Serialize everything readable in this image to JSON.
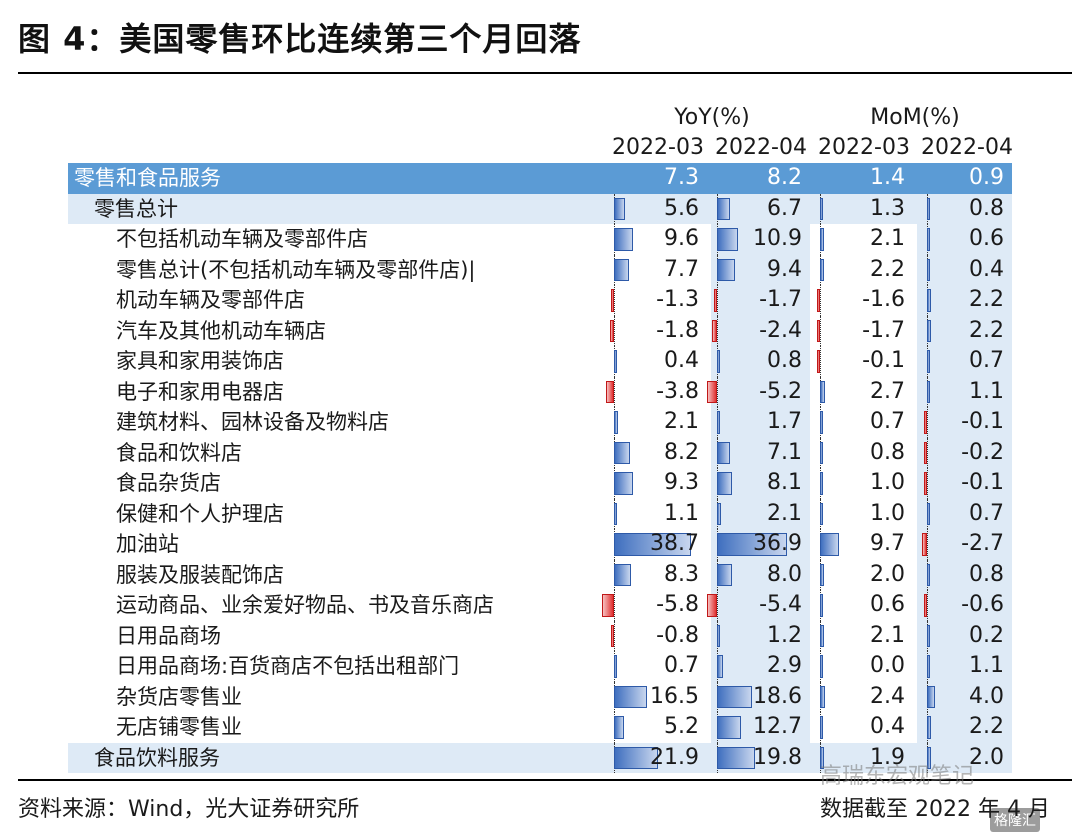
{
  "title": "图 4：美国零售环比连续第三个月回落",
  "footer": {
    "source": "资料来源：Wind，光大证券研究所",
    "date": "数据截至 2022 年 4 月"
  },
  "watermark": {
    "text": "高瑞东宏观笔记",
    "logo": "格隆汇"
  },
  "colors": {
    "header_bg": "#5b9bd5",
    "band_bg": "#deeaf6",
    "positive_bar": "#4472c4",
    "negative_bar": "#e03030"
  },
  "chart_data": {
    "type": "table",
    "group_headers": [
      "YoY(%)",
      "MoM(%)"
    ],
    "columns": [
      "2022-03",
      "2022-04",
      "2022-03",
      "2022-04"
    ],
    "rows": [
      {
        "label": "零售和食品服务",
        "values": [
          "7.3",
          "8.2",
          "1.4",
          "0.9"
        ]
      },
      {
        "label": "零售总计",
        "values": [
          "5.6",
          "6.7",
          "1.3",
          "0.8"
        ]
      },
      {
        "label": "不包括机动车辆及零部件店",
        "values": [
          "9.6",
          "10.9",
          "2.1",
          "0.6"
        ]
      },
      {
        "label": "零售总计(不包括机动车辆及零部件店)|",
        "values": [
          "7.7",
          "9.4",
          "2.2",
          "0.4"
        ]
      },
      {
        "label": "机动车辆及零部件店",
        "values": [
          "-1.3",
          "-1.7",
          "-1.6",
          "2.2"
        ]
      },
      {
        "label": "汽车及其他机动车辆店",
        "values": [
          "-1.8",
          "-2.4",
          "-1.7",
          "2.2"
        ]
      },
      {
        "label": "家具和家用装饰店",
        "values": [
          "0.4",
          "0.8",
          "-0.1",
          "0.7"
        ]
      },
      {
        "label": "电子和家用电器店",
        "values": [
          "-3.8",
          "-5.2",
          "2.7",
          "1.1"
        ]
      },
      {
        "label": "建筑材料、园林设备及物料店",
        "values": [
          "2.1",
          "1.7",
          "0.7",
          "-0.1"
        ]
      },
      {
        "label": "食品和饮料店",
        "values": [
          "8.2",
          "7.1",
          "0.8",
          "-0.2"
        ]
      },
      {
        "label": "食品杂货店",
        "values": [
          "9.3",
          "8.1",
          "1.0",
          "-0.1"
        ]
      },
      {
        "label": "保健和个人护理店",
        "values": [
          "1.1",
          "2.1",
          "1.0",
          "0.7"
        ]
      },
      {
        "label": "加油站",
        "values": [
          "38.7",
          "36.9",
          "9.7",
          "-2.7"
        ]
      },
      {
        "label": "服装及服装配饰店",
        "values": [
          "8.3",
          "8.0",
          "2.0",
          "0.8"
        ]
      },
      {
        "label": "运动商品、业余爱好物品、书及音乐商店",
        "values": [
          "-5.8",
          "-5.4",
          "0.6",
          "-0.6"
        ]
      },
      {
        "label": "日用品商场",
        "values": [
          "-0.8",
          "1.2",
          "2.1",
          "0.2"
        ]
      },
      {
        "label": "日用品商场:百货商店不包括出租部门",
        "values": [
          "0.7",
          "2.9",
          "0.0",
          "1.1"
        ]
      },
      {
        "label": "杂货店零售业",
        "values": [
          "16.5",
          "18.6",
          "2.4",
          "4.0"
        ]
      },
      {
        "label": "无店铺零售业",
        "values": [
          "5.2",
          "12.7",
          "0.4",
          "2.2"
        ]
      },
      {
        "label": "食品饮料服务",
        "values": [
          "21.9",
          "19.8",
          "1.9",
          "2.0"
        ]
      }
    ]
  }
}
